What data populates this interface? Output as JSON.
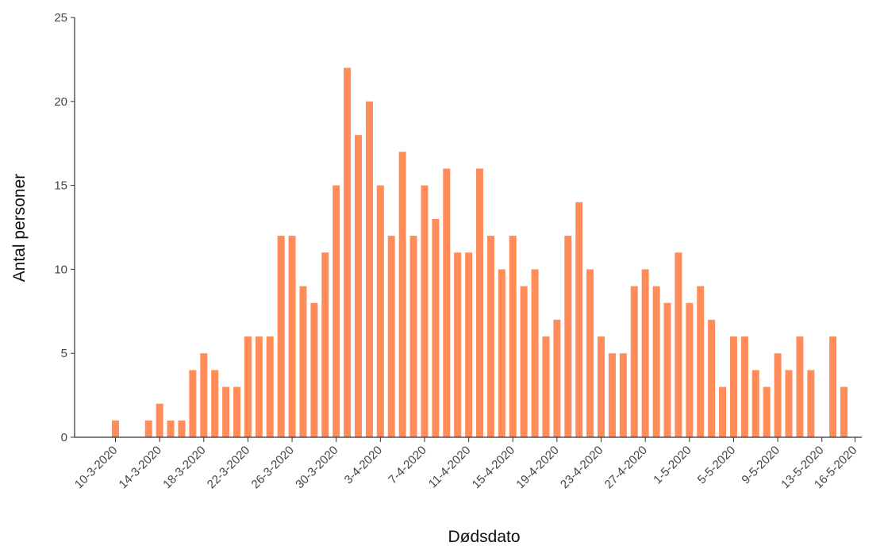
{
  "chart_data": {
    "type": "bar",
    "xlabel": "Dødsdato",
    "ylabel": "Antal personer",
    "ylim": [
      0,
      25
    ],
    "yticks": [
      0,
      5,
      10,
      15,
      20,
      25
    ],
    "bar_color": "#FF8C59",
    "grid": false,
    "legend": "none",
    "x": [
      "10-3-2020",
      "11-3-2020",
      "12-3-2020",
      "13-3-2020",
      "14-3-2020",
      "15-3-2020",
      "16-3-2020",
      "17-3-2020",
      "18-3-2020",
      "19-3-2020",
      "20-3-2020",
      "21-3-2020",
      "22-3-2020",
      "23-3-2020",
      "24-3-2020",
      "25-3-2020",
      "26-3-2020",
      "27-3-2020",
      "28-3-2020",
      "29-3-2020",
      "30-3-2020",
      "31-3-2020",
      "1-4-2020",
      "2-4-2020",
      "3-4-2020",
      "4-4-2020",
      "5-4-2020",
      "6-4-2020",
      "7-4-2020",
      "8-4-2020",
      "9-4-2020",
      "10-4-2020",
      "11-4-2020",
      "12-4-2020",
      "13-4-2020",
      "14-4-2020",
      "15-4-2020",
      "16-4-2020",
      "17-4-2020",
      "18-4-2020",
      "19-4-2020",
      "20-4-2020",
      "21-4-2020",
      "22-4-2020",
      "23-4-2020",
      "24-4-2020",
      "25-4-2020",
      "26-4-2020",
      "27-4-2020",
      "28-4-2020",
      "29-4-2020",
      "30-4-2020",
      "1-5-2020",
      "2-5-2020",
      "3-5-2020",
      "4-5-2020",
      "5-5-2020",
      "6-5-2020",
      "7-5-2020",
      "8-5-2020",
      "9-5-2020",
      "10-5-2020",
      "11-5-2020",
      "12-5-2020",
      "13-5-2020",
      "14-5-2020",
      "15-5-2020",
      "16-5-2020"
    ],
    "values": [
      1,
      0,
      0,
      1,
      2,
      1,
      1,
      4,
      5,
      4,
      3,
      3,
      6,
      6,
      6,
      12,
      12,
      9,
      8,
      11,
      15,
      22,
      18,
      20,
      15,
      12,
      17,
      12,
      15,
      13,
      16,
      11,
      11,
      16,
      12,
      10,
      12,
      9,
      10,
      6,
      7,
      12,
      14,
      10,
      6,
      5,
      5,
      9,
      10,
      9,
      8,
      11,
      8,
      9,
      7,
      3,
      6,
      6,
      4,
      3,
      5,
      4,
      6,
      4,
      0,
      6,
      3,
      0
    ],
    "xtick_labels": [
      "10-3-2020",
      "14-3-2020",
      "18-3-2020",
      "22-3-2020",
      "26-3-2020",
      "30-3-2020",
      "3-4-2020",
      "7-4-2020",
      "11-4-2020",
      "15-4-2020",
      "19-4-2020",
      "23-4-2020",
      "27-4-2020",
      "1-5-2020",
      "5-5-2020",
      "9-5-2020",
      "13-5-2020",
      "16-5-2020"
    ]
  }
}
